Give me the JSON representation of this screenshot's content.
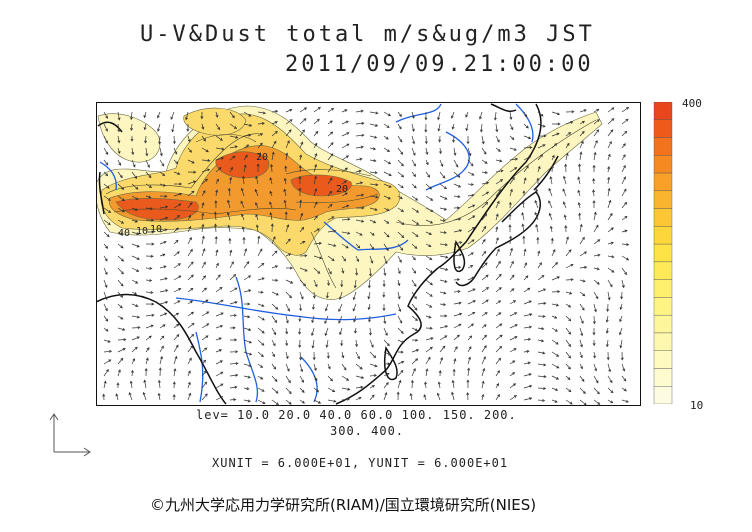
{
  "header": {
    "title_line1": "U-V&Dust total m/s&ug/m3 JST",
    "title_line2": "2011/09/09.21:00:00"
  },
  "legend": {
    "max_label": "400",
    "min_label": "10",
    "colors": [
      "#e8471c",
      "#ee5a1c",
      "#f2721e",
      "#f58a22",
      "#f8a028",
      "#fbb42e",
      "#fcc634",
      "#fdd63c",
      "#fee246",
      "#feea58",
      "#fef06e",
      "#fef484",
      "#fef69a",
      "#fef8ae",
      "#fefac0",
      "#fefbcf",
      "#fefce0"
    ]
  },
  "map": {
    "contour_labels": [
      "40",
      "10",
      "10",
      "20",
      "20"
    ],
    "colors": {
      "dust_low": "#fdf6c0",
      "dust_mid": "#fbd96a",
      "dust_high": "#f39a2e",
      "dust_max": "#ea5a1c",
      "coast": "#111111",
      "river": "#1f5fe0",
      "wind": "#333333"
    }
  },
  "footer": {
    "levels_line1": "lev= 10.0 20.0 40.0 60.0 100. 150. 200.",
    "levels_line2": "300. 400.",
    "units": "XUNIT = 6.000E+01, YUNIT = 6.000E+01",
    "copyright": "©九州大学応用力学研究所(RIAM)/国立環境研究所(NIES)"
  }
}
